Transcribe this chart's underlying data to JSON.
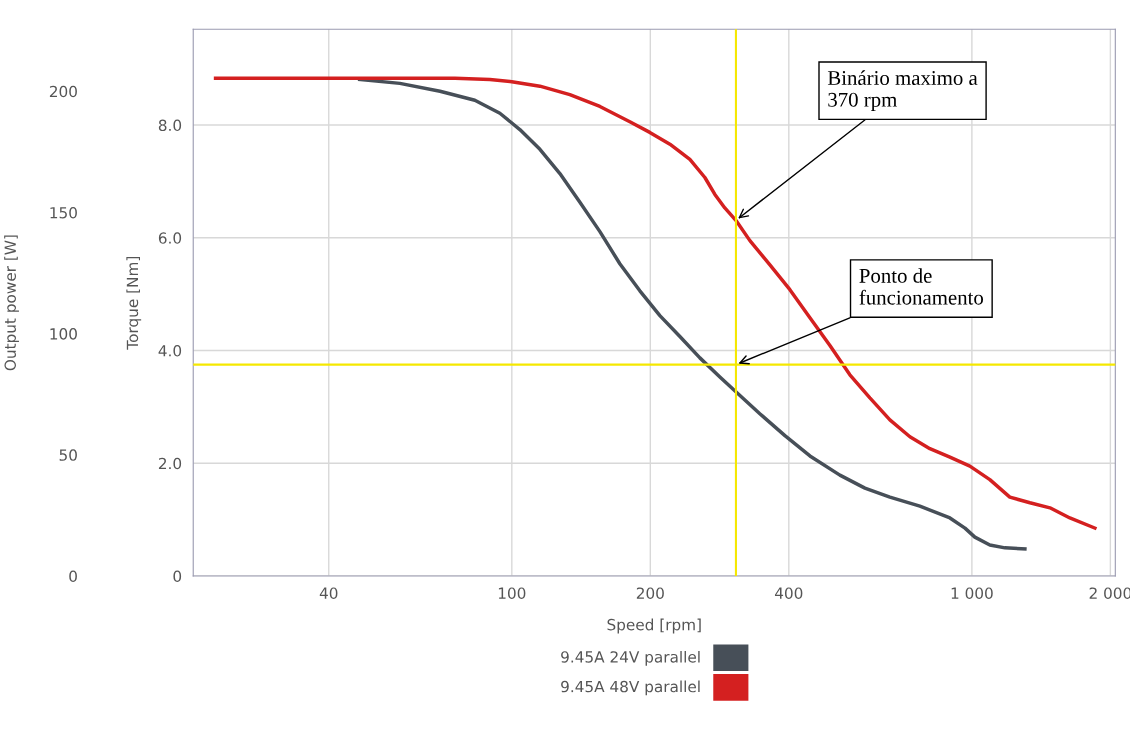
{
  "chart_data": {
    "type": "line",
    "xlabel": "Speed [rpm]",
    "ylabel": "Torque [Nm]",
    "y2label": "Output power [W]",
    "log": "x",
    "xlim": [
      20.3,
      2050
    ],
    "xticks": [
      40,
      100,
      200,
      400,
      {
        "value": 1000,
        "label": "1 000"
      },
      {
        "value": 2000,
        "label": "2 000"
      }
    ],
    "ylim": [
      0,
      9.7
    ],
    "yticks": [
      0,
      {
        "value": 2,
        "label": "2.0"
      },
      {
        "value": 4,
        "label": "4.0"
      },
      {
        "value": 6,
        "label": "6.0"
      },
      {
        "value": 8,
        "label": "8.0"
      }
    ],
    "y2lim": [
      0,
      225.6
    ],
    "y2ticks": [
      0,
      50,
      100,
      150,
      200
    ],
    "grid": true,
    "legend": "bottom",
    "line_style": "solid",
    "marker": "none",
    "series": [
      {
        "name": "9.45A 24V parallel",
        "color": "#474f58",
        "x": [
          46.7,
          57.1,
          69.8,
          83.1,
          94.2,
          104.1,
          115.1,
          127.2,
          140.6,
          155.4,
          171.7,
          189.8,
          209.8,
          231.9,
          256.3,
          283.3,
          306.9,
          346.0,
          392.3,
          444.6,
          516.5,
          585.4,
          663.4,
          770.9,
          895.9,
          966,
          1015,
          1094,
          1180,
          1304
        ],
        "values": [
          8.81,
          8.74,
          8.6,
          8.44,
          8.21,
          7.92,
          7.57,
          7.14,
          6.63,
          6.11,
          5.54,
          5.06,
          4.62,
          4.25,
          3.87,
          3.53,
          3.27,
          2.88,
          2.49,
          2.13,
          1.79,
          1.56,
          1.4,
          1.24,
          1.03,
          0.85,
          0.69,
          0.55,
          0.5,
          0.48
        ]
      },
      {
        "name": "9.45A 48V parallel",
        "color": "#d42020",
        "x": [
          22.7,
          34.6,
          57.1,
          75.2,
          89.6,
          100,
          115.1,
          133.7,
          155.4,
          180.5,
          199.5,
          220.6,
          243.8,
          262.8,
          276.3,
          290.4,
          306.9,
          329.2,
          363.9,
          402.2,
          444.6,
          491.4,
          543.0,
          600.2,
          663.4,
          733.3,
          810.4,
          895.9,
          990,
          1094,
          1209,
          1337,
          1478,
          1633,
          1851
        ],
        "values": [
          8.83,
          8.83,
          8.83,
          8.83,
          8.81,
          8.77,
          8.69,
          8.54,
          8.33,
          8.06,
          7.87,
          7.66,
          7.39,
          7.07,
          6.77,
          6.53,
          6.31,
          5.95,
          5.52,
          5.08,
          4.58,
          4.09,
          3.57,
          3.16,
          2.77,
          2.47,
          2.26,
          2.11,
          1.95,
          1.71,
          1.4,
          1.3,
          1.21,
          1.03,
          0.85
        ]
      }
    ],
    "ref_lines": [
      {
        "axis": "x",
        "value": 307,
        "color": "#f5e800"
      },
      {
        "axis": "y",
        "value": 3.75,
        "color": "#f5e800"
      }
    ],
    "annotations": [
      {
        "text": "Binário maximo a\n370 rpm",
        "x": 307,
        "y": 6.31
      },
      {
        "text": "Ponto de\nfuncionamento",
        "x": 307,
        "y": 3.75
      }
    ]
  }
}
